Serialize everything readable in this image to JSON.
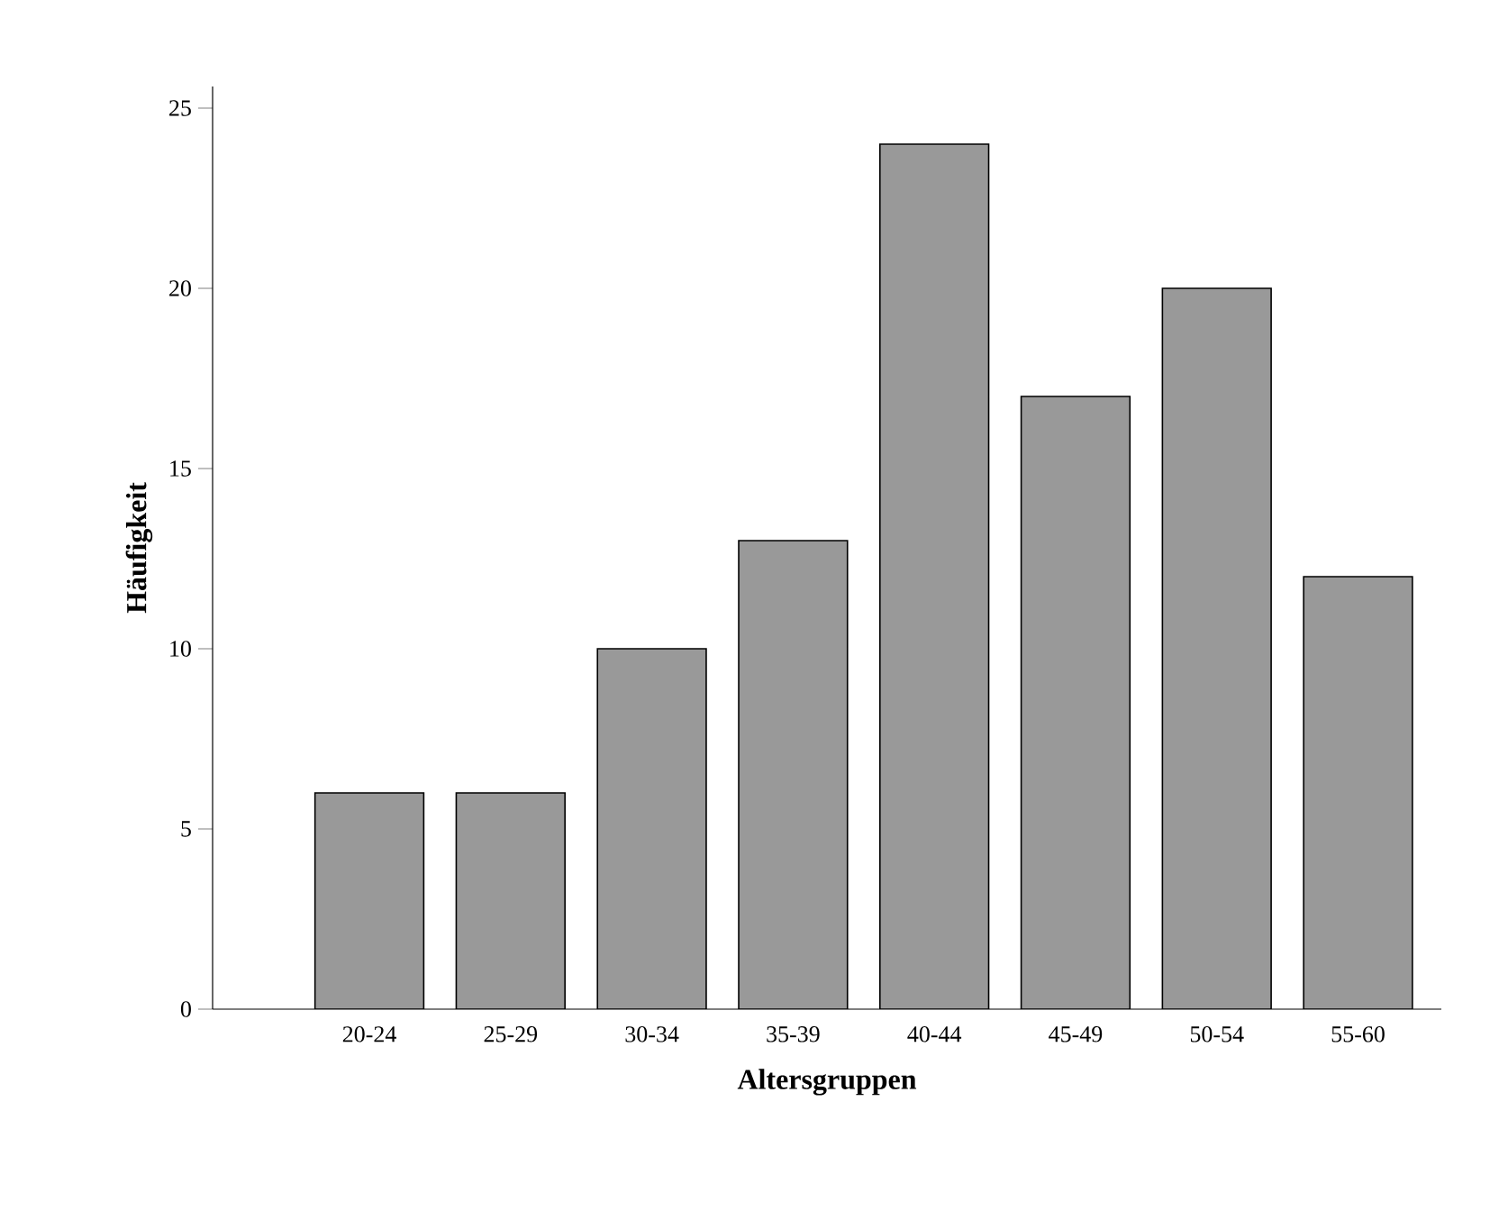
{
  "chart_data": {
    "type": "bar",
    "xlabel": "Altersgruppen",
    "ylabel": "Häufigkeit",
    "categories": [
      "20-24",
      "25-29",
      "30-34",
      "35-39",
      "40-44",
      "45-49",
      "50-54",
      "55-60"
    ],
    "values": [
      6,
      6,
      10,
      13,
      24,
      17,
      20,
      12
    ],
    "color": "#999999",
    "ylim": [
      0,
      25.6
    ],
    "yticks": [
      0,
      5,
      10,
      15,
      20,
      25
    ],
    "grid": false
  }
}
